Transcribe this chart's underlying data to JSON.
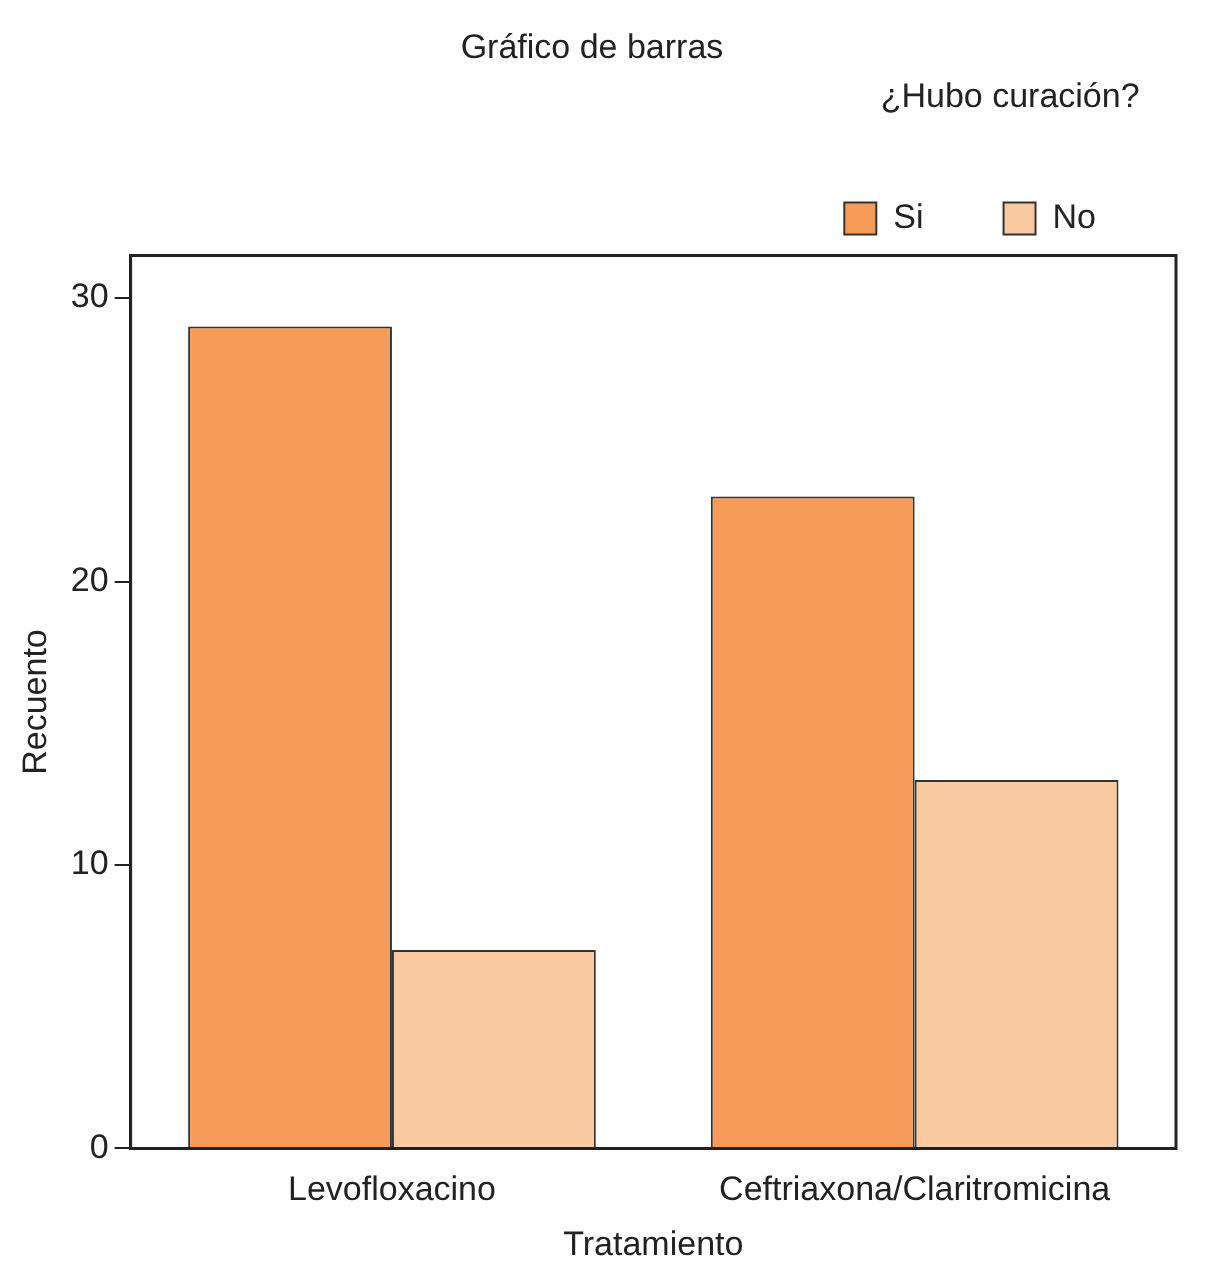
{
  "chart_data": {
    "type": "bar",
    "title": "Gráfico de barras",
    "xlabel": "Tratamiento",
    "ylabel": "Recuento",
    "legend_title": "¿Hubo curación?",
    "categories": [
      "Levofloxacino",
      "Ceftriaxona/Claritromicina"
    ],
    "series": [
      {
        "name": "Si",
        "color": "#f79c58",
        "values": [
          29,
          23
        ]
      },
      {
        "name": "No",
        "color": "#f9c9a0",
        "values": [
          7,
          13
        ]
      }
    ],
    "ylim": [
      0,
      31.5
    ],
    "yticks": [
      0,
      10,
      20,
      30
    ],
    "grid": false,
    "legend": "top right"
  }
}
